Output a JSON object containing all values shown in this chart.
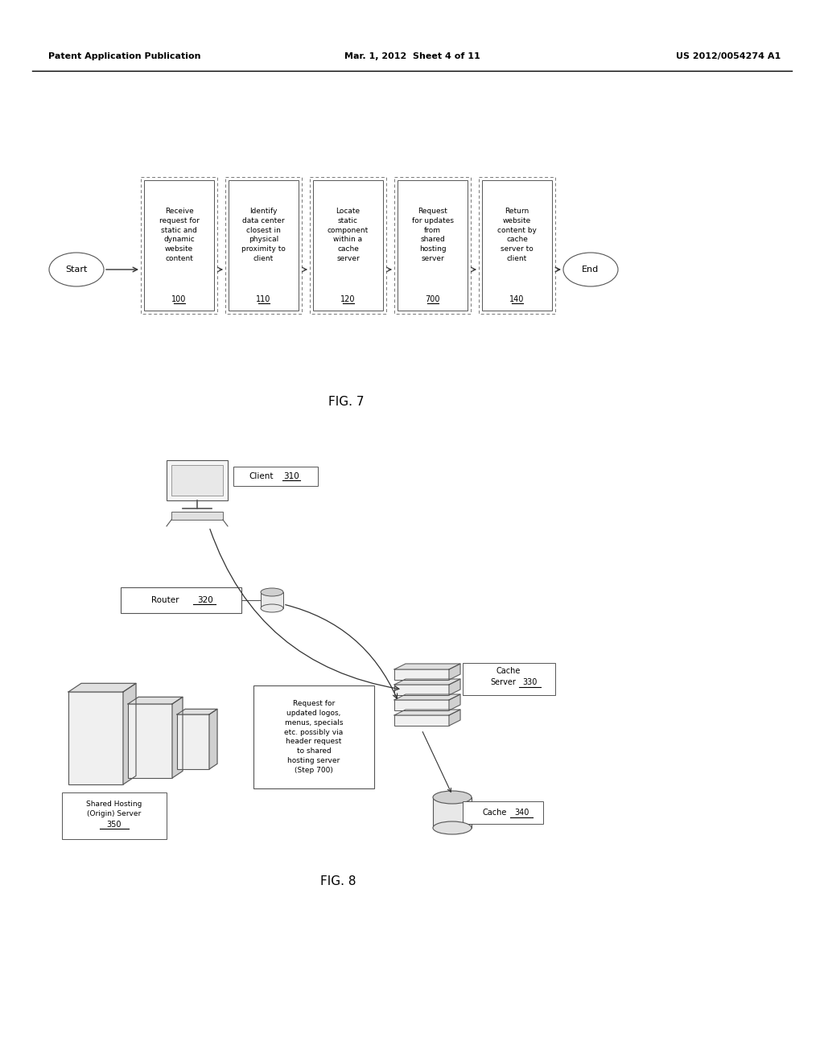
{
  "header_left": "Patent Application Publication",
  "header_mid": "Mar. 1, 2012  Sheet 4 of 11",
  "header_right": "US 2012/0054274 A1",
  "fig7_label": "FIG. 7",
  "fig8_label": "FIG. 8",
  "boxes_text": [
    "Receive\nrequest for\nstatic and\ndynamic\nwebsite\ncontent",
    "Identify\ndata center\nclosest in\nphysical\nproximity to\nclient",
    "Locate\nstatic\ncomponent\nwithin a\ncache\nserver",
    "Request\nfor updates\nfrom\nshared\nhosting\nserver",
    "Return\nwebsite\ncontent by\ncache\nserver to\nclient"
  ],
  "boxes_num": [
    "100",
    "110",
    "120",
    "700",
    "140"
  ],
  "center_text": "Request for\nupdated logos,\nmenus, specials\netc. possibly via\nheader request\nto shared\nhosting server\n(Step 700)",
  "bg_color": "#ffffff",
  "edge_color": "#555555",
  "arrow_color": "#333333"
}
